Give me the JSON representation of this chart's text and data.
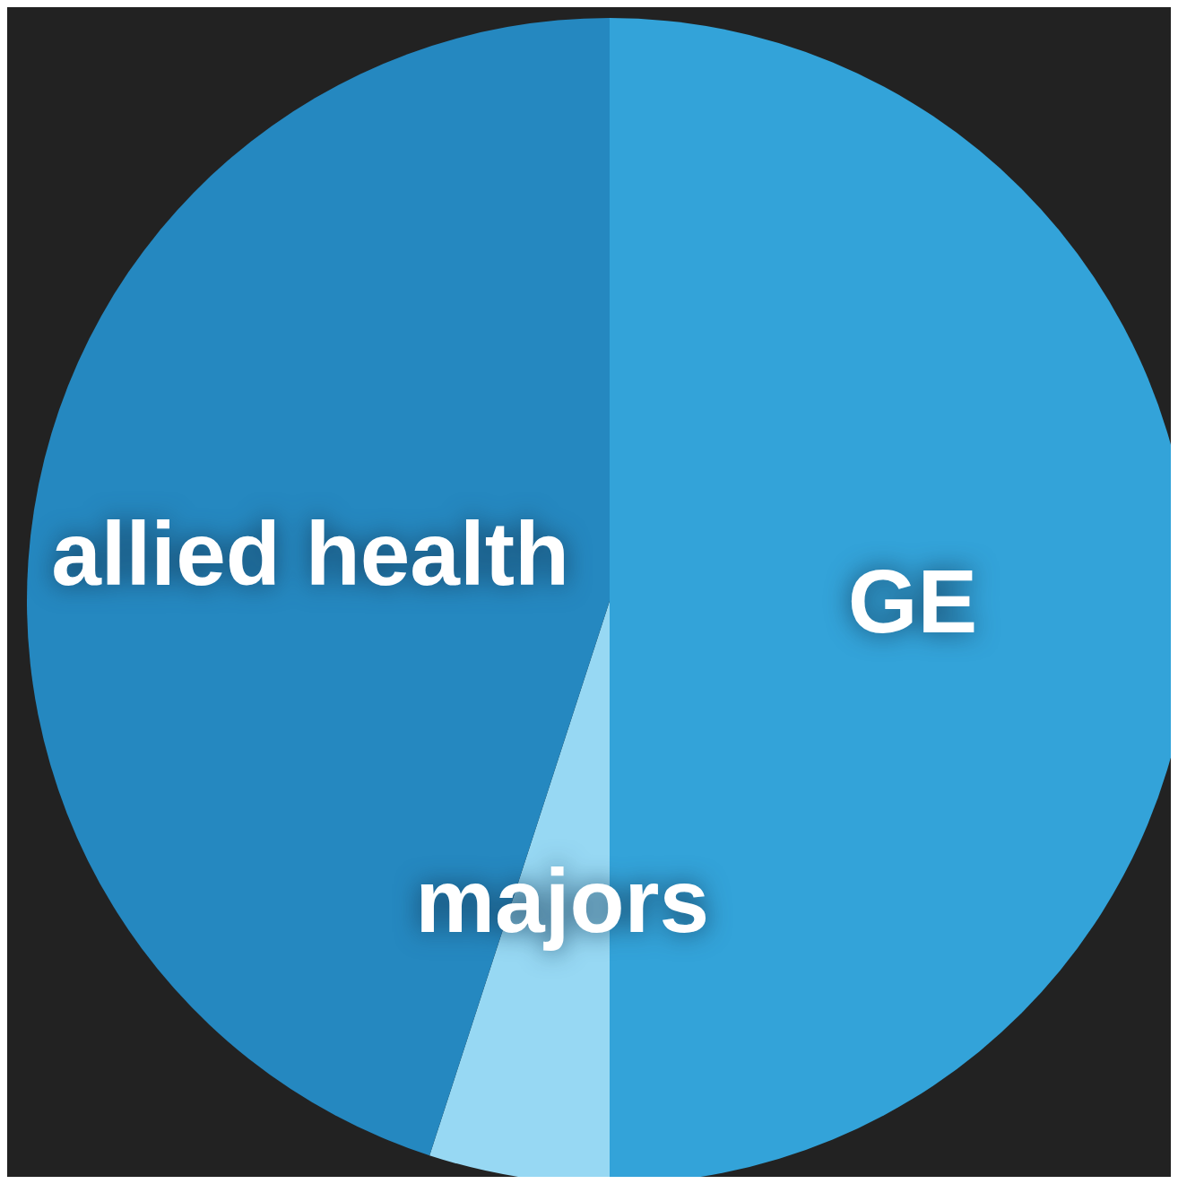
{
  "chart_data": {
    "type": "pie",
    "categories": [
      "GE",
      "majors",
      "allied health"
    ],
    "values": [
      50,
      5,
      45
    ],
    "colors": [
      "#33a3d9",
      "#97d8f3",
      "#2588c0"
    ]
  }
}
